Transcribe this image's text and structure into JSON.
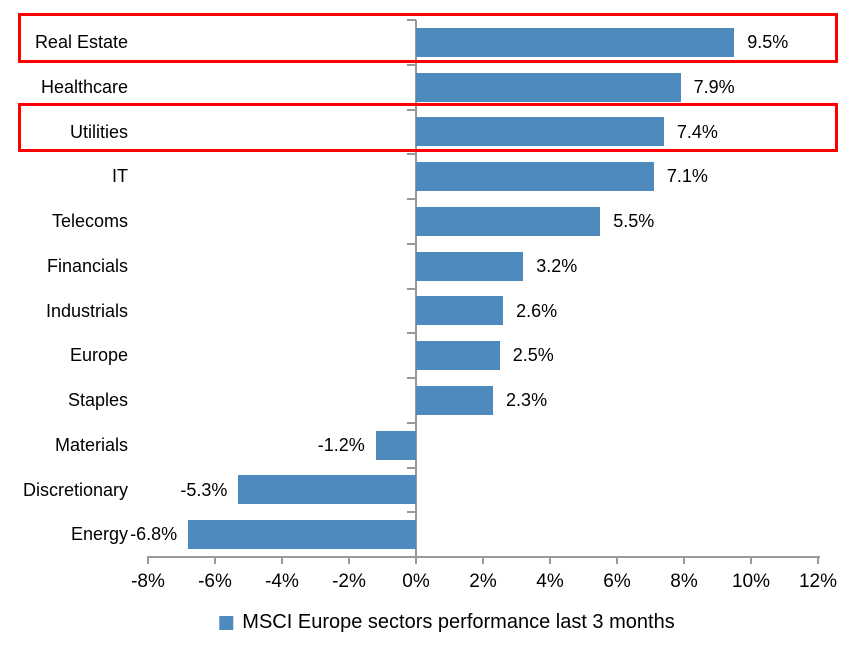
{
  "chart_data": {
    "type": "bar",
    "orientation": "horizontal",
    "title": "",
    "categories": [
      "Real Estate",
      "Healthcare",
      "Utilities",
      "IT",
      "Telecoms",
      "Financials",
      "Industrials",
      "Europe",
      "Staples",
      "Materials",
      "Discretionary",
      "Energy"
    ],
    "values": [
      9.5,
      7.9,
      7.4,
      7.1,
      5.5,
      3.2,
      2.6,
      2.5,
      2.3,
      -1.2,
      -5.3,
      -6.8
    ],
    "value_labels": [
      "9.5%",
      "7.9%",
      "7.4%",
      "7.1%",
      "5.5%",
      "3.2%",
      "2.6%",
      "2.5%",
      "2.3%",
      "-1.2%",
      "-5.3%",
      "-6.8%"
    ],
    "xlim": [
      -8,
      12
    ],
    "x_tick_step": 2,
    "x_tick_labels": [
      "-8%",
      "-6%",
      "-4%",
      "-2%",
      "0%",
      "2%",
      "4%",
      "6%",
      "8%",
      "10%",
      "12%"
    ],
    "grid": false,
    "legend": "MSCI Europe sectors performance last 3 months",
    "legend_position": "bottom",
    "bar_color": "#4E8ABD",
    "axis_color": "#999999",
    "highlight_color": "#FF0000",
    "text_color": "#000000",
    "highlighted_categories": [
      "Real Estate",
      "Utilities"
    ]
  }
}
